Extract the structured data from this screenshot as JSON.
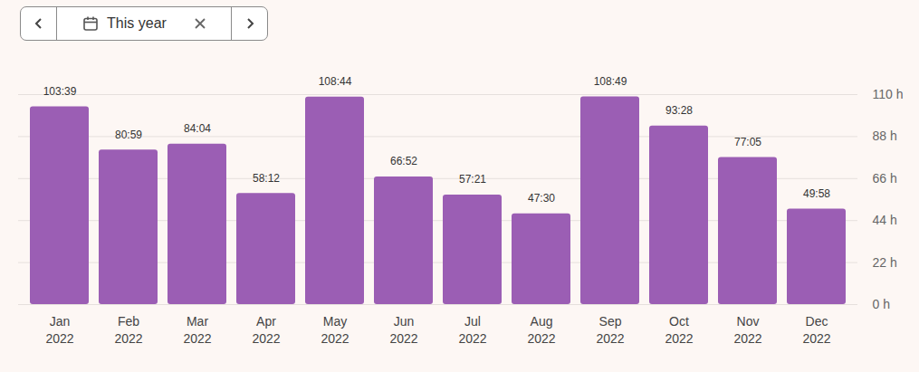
{
  "filter": {
    "label": "This year"
  },
  "chart_data": {
    "type": "bar",
    "categories": [
      "Jan\n2022",
      "Feb\n2022",
      "Mar\n2022",
      "Apr\n2022",
      "May\n2022",
      "Jun\n2022",
      "Jul\n2022",
      "Aug\n2022",
      "Sep\n2022",
      "Oct\n2022",
      "Nov\n2022",
      "Dec\n2022"
    ],
    "values": [
      103.65,
      80.9833,
      84.0667,
      58.2,
      108.7333,
      66.8667,
      57.35,
      47.5,
      108.8167,
      93.4667,
      77.0833,
      49.9667
    ],
    "value_labels": [
      "103:39",
      "80:59",
      "84:04",
      "58:12",
      "108:44",
      "66:52",
      "57:21",
      "47:30",
      "108:49",
      "93:28",
      "77:05",
      "49:58"
    ],
    "data_labels": true,
    "color": "#9b5eb4",
    "ylim": [
      0,
      110
    ],
    "yticks": [
      {
        "value": 0,
        "label": "0 h"
      },
      {
        "value": 22,
        "label": "22 h"
      },
      {
        "value": 44,
        "label": "44 h"
      },
      {
        "value": 66,
        "label": "66 h"
      },
      {
        "value": 88,
        "label": "88 h"
      },
      {
        "value": 110,
        "label": "110 h"
      }
    ],
    "grid": true
  }
}
